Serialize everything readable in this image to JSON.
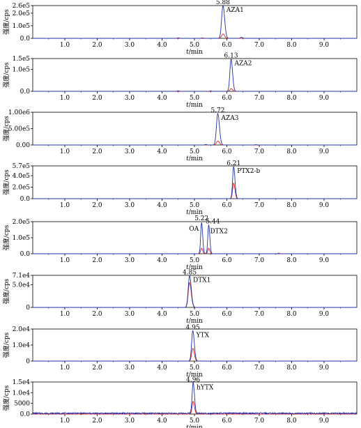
{
  "chart_data": [
    {
      "type": "line",
      "ylabel": "强度/cps",
      "xlabel": "t/min",
      "xlim": [
        0,
        10
      ],
      "x_ticks": [
        "1.0",
        "2.0",
        "3.0",
        "4.0",
        "5.0",
        "6.0",
        "7.0",
        "8.0",
        "9.0"
      ],
      "y_ticks": [
        "0.0",
        "1.0e5",
        "2.0e5",
        "2.6e5"
      ],
      "ylim": [
        0,
        260000
      ],
      "peak": {
        "rt": 5.88,
        "rt_label": "5.88",
        "compound": "AZA1",
        "height": 260000,
        "width": 0.09,
        "red_height": 35000
      },
      "minor_peaks": [
        {
          "x": 4.5,
          "h": 4000
        },
        {
          "x": 5.25,
          "h": 3000
        },
        {
          "x": 6.45,
          "h": 9000
        }
      ]
    },
    {
      "type": "line",
      "ylabel": "强度/cps",
      "xlabel": "t/min",
      "xlim": [
        0,
        10
      ],
      "x_ticks": [
        "1.0",
        "2.0",
        "3.0",
        "4.0",
        "5.0",
        "6.0",
        "7.0",
        "8.0",
        "9.0"
      ],
      "y_ticks": [
        "0.0",
        "1.0e5",
        "1.5e5"
      ],
      "ylim": [
        0,
        150000
      ],
      "peak": {
        "rt": 6.13,
        "rt_label": "6.13",
        "compound": "AZA2",
        "height": 148000,
        "width": 0.08,
        "red_height": 12000
      },
      "minor_peaks": [
        {
          "x": 4.5,
          "h": 2500
        },
        {
          "x": 5.5,
          "h": 2000
        }
      ]
    },
    {
      "type": "line",
      "ylabel": "强度/cps",
      "xlabel": "t/min",
      "xlim": [
        0,
        10
      ],
      "x_ticks": [
        "1.0",
        "2.0",
        "3.0",
        "4.0",
        "5.0",
        "6.0",
        "7.0",
        "8.0",
        "9.0"
      ],
      "y_ticks": [
        "0.00",
        "5.00e5",
        "1.00e6"
      ],
      "ylim": [
        0,
        1000000
      ],
      "peak": {
        "rt": 5.72,
        "rt_label": "5.72",
        "compound": "AZA3",
        "height": 960000,
        "width": 0.09,
        "red_height": 120000
      },
      "minor_peaks": [
        {
          "x": 5.35,
          "h": 15000
        },
        {
          "x": 6.9,
          "h": 10000
        }
      ]
    },
    {
      "type": "line",
      "ylabel": "强度/cps",
      "xlabel": "t/min",
      "xlim": [
        0,
        10
      ],
      "x_ticks": [
        "1.0",
        "2.0",
        "3.0",
        "4.0",
        "5.0",
        "6.0",
        "7.0",
        "8.0",
        "9.0"
      ],
      "y_ticks": [
        "0.0",
        "2.0e5",
        "4.0e5",
        "5.7e5"
      ],
      "ylim": [
        0,
        570000
      ],
      "peak": {
        "rt": 6.21,
        "rt_label": "6.21",
        "compound": "PTX2-b",
        "height": 560000,
        "width": 0.07,
        "red_height": 270000
      },
      "minor_peaks": []
    },
    {
      "type": "line",
      "ylabel": "强度/cps",
      "xlabel": "t/min",
      "xlim": [
        0,
        10
      ],
      "x_ticks": [
        "1.0",
        "2.0",
        "3.0",
        "4.0",
        "5.0",
        "6.0",
        "7.0",
        "8.0",
        "9.0"
      ],
      "y_ticks": [
        "0.0",
        "1.0e5",
        "2.0e5"
      ],
      "ylim": [
        0,
        200000
      ],
      "peaks": [
        {
          "rt": 5.22,
          "rt_label": "5.22",
          "compound": "OA",
          "height": 195000,
          "width": 0.06,
          "red_height": 35000
        },
        {
          "rt": 5.44,
          "rt_label": "5.44",
          "compound": "DTX2",
          "height": 180000,
          "width": 0.06,
          "red_height": 35000
        }
      ],
      "minor_peaks": [
        {
          "x": 7.6,
          "h": 3000
        }
      ]
    },
    {
      "type": "line",
      "ylabel": "强度/cps",
      "xlabel": "t/min",
      "xlim": [
        0,
        10
      ],
      "x_ticks": [
        "1.0",
        "2.0",
        "3.0",
        "4.0",
        "5.0",
        "6.0",
        "7.0",
        "8.0",
        "9.0"
      ],
      "y_ticks": [
        "0",
        "5.0e4",
        "7.1e4"
      ],
      "ylim": [
        0,
        71000
      ],
      "peak": {
        "rt": 4.85,
        "rt_label": "4.85",
        "compound": "DTX1",
        "height": 70000,
        "width": 0.09,
        "red_height": 55000
      },
      "minor_peaks": []
    },
    {
      "type": "line",
      "ylabel": "强度/cps",
      "xlabel": "t/min",
      "xlim": [
        0,
        10
      ],
      "x_ticks": [
        "1.0",
        "2.0",
        "3.0",
        "4.0",
        "5.0",
        "6.0",
        "7.0",
        "8.0",
        "9.0"
      ],
      "y_ticks": [
        "0",
        "1.0e4",
        "2.0e4"
      ],
      "ylim": [
        0,
        20000
      ],
      "peak": {
        "rt": 4.95,
        "rt_label": "4.95",
        "compound": "YTX",
        "height": 19000,
        "width": 0.08,
        "red_height": 8000
      },
      "minor_peaks": []
    },
    {
      "type": "line",
      "ylabel": "强度/cps",
      "xlabel": "t/min",
      "xlim": [
        0,
        10
      ],
      "x_ticks": [
        "1.0",
        "2.0",
        "3.0",
        "4.0",
        "5.0",
        "6.0",
        "7.0",
        "8.0",
        "9.0"
      ],
      "y_ticks": [
        "0.0",
        "5000",
        "1.0e4",
        "1.5e4"
      ],
      "ylim": [
        0,
        15000
      ],
      "peak": {
        "rt": 4.96,
        "rt_label": "4.96",
        "compound": "hYTX",
        "height": 14500,
        "width": 0.07,
        "red_height": 6000
      },
      "minor_peaks": [],
      "noise": 600
    }
  ],
  "colors": {
    "blue": "#1f2fa8",
    "red": "#d42020",
    "axis": "#000000"
  }
}
